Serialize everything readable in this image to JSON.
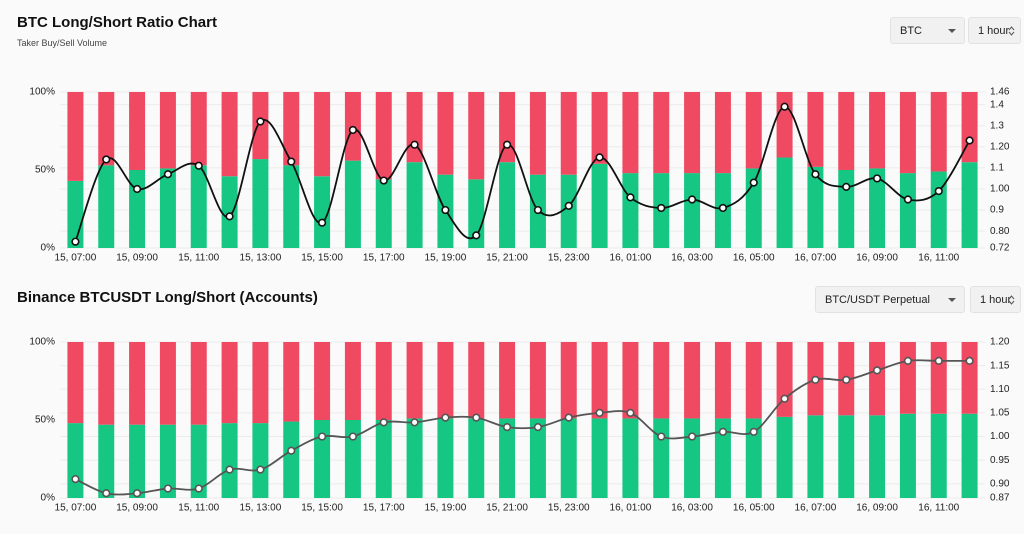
{
  "controls": [
    [
      "BTC",
      "1 hour"
    ],
    [
      "BTC/USDT Perpetual",
      "1 hour"
    ]
  ],
  "chart_data": [
    {
      "type": "stacked-bar-line",
      "title": "BTC Long/Short Ratio Chart",
      "subtitle": "Taker Buy/Sell Volume",
      "categories": [
        "15, 07:00",
        null,
        "15, 09:00",
        null,
        "15, 11:00",
        null,
        "15, 13:00",
        null,
        "15, 15:00",
        null,
        "15, 17:00",
        null,
        "15, 19:00",
        null,
        "15, 21:00",
        null,
        "15, 23:00",
        null,
        "16, 01:00",
        null,
        "16, 03:00",
        null,
        "16, 05:00",
        null,
        "16, 07:00",
        null,
        "16, 09:00",
        null,
        "16, 11:00",
        null
      ],
      "series": [
        {
          "color": "#16c784",
          "values": [
            43,
            53,
            50,
            51,
            53,
            46,
            57,
            53,
            46,
            56,
            44,
            55,
            47,
            44,
            55,
            47,
            47,
            54,
            48,
            48,
            48,
            48,
            51,
            58,
            52,
            50,
            51,
            48,
            49,
            55
          ]
        },
        {
          "color": "#f04a63",
          "values": [
            57,
            47,
            50,
            49,
            47,
            54,
            43,
            47,
            54,
            44,
            56,
            45,
            53,
            56,
            45,
            53,
            53,
            46,
            52,
            52,
            52,
            52,
            49,
            42,
            48,
            50,
            49,
            52,
            51,
            45
          ]
        },
        {
          "color": "#111111",
          "axis": "y2",
          "values": [
            0.75,
            1.14,
            1.0,
            1.07,
            1.11,
            0.87,
            1.32,
            1.13,
            0.84,
            1.28,
            1.04,
            1.21,
            0.9,
            0.78,
            1.21,
            0.9,
            0.92,
            1.15,
            0.96,
            0.91,
            0.95,
            0.91,
            1.03,
            1.39,
            1.07,
            1.01,
            1.05,
            0.95,
            0.99,
            1.23
          ]
        }
      ],
      "ylim": [
        0,
        100
      ],
      "yticks": [
        {
          "value": 0,
          "label": "0%"
        },
        {
          "value": 50,
          "label": "50%"
        },
        {
          "value": 100,
          "label": "100%"
        }
      ],
      "y2lim": [
        0.72,
        1.46
      ],
      "y2ticks": [
        0.72,
        {
          "value": 0.8,
          "label": "0.80"
        },
        0.9,
        {
          "value": 1,
          "label": "1.00"
        },
        1.1,
        {
          "value": 1.2,
          "label": "1.20"
        },
        1.3,
        1.4,
        1.46
      ],
      "grid": true
    },
    {
      "type": "stacked-bar-line",
      "title": "Binance BTCUSDT Long/Short (Accounts)",
      "categories": [
        "15, 07:00",
        null,
        "15, 09:00",
        null,
        "15, 11:00",
        null,
        "15, 13:00",
        null,
        "15, 15:00",
        null,
        "15, 17:00",
        null,
        "15, 19:00",
        null,
        "15, 21:00",
        null,
        "15, 23:00",
        null,
        "16, 01:00",
        null,
        "16, 03:00",
        null,
        "16, 05:00",
        null,
        "16, 07:00",
        null,
        "16, 09:00",
        null,
        "16, 11:00",
        null
      ],
      "series": [
        {
          "color": "#16c784",
          "values": [
            48,
            47,
            47,
            47,
            47,
            48,
            48,
            49,
            50,
            50,
            50,
            51,
            51,
            51,
            51,
            51,
            51,
            51,
            51,
            51,
            51,
            51,
            51,
            52,
            53,
            53,
            53,
            54,
            54,
            54
          ]
        },
        {
          "color": "#f04a63",
          "values": [
            52,
            53,
            53,
            53,
            53,
            52,
            52,
            51,
            50,
            50,
            50,
            49,
            49,
            49,
            49,
            49,
            49,
            49,
            49,
            49,
            49,
            49,
            49,
            48,
            47,
            47,
            47,
            46,
            46,
            46
          ]
        },
        {
          "color": "#555555",
          "axis": "y2",
          "values": [
            0.91,
            0.88,
            0.88,
            0.89,
            0.89,
            0.93,
            0.93,
            0.97,
            1.0,
            1.0,
            1.03,
            1.03,
            1.04,
            1.04,
            1.02,
            1.02,
            1.04,
            1.05,
            1.05,
            1.0,
            1.0,
            1.01,
            1.01,
            1.08,
            1.12,
            1.12,
            1.14,
            1.16,
            1.16,
            1.16
          ]
        }
      ],
      "ylim": [
        0,
        100
      ],
      "yticks": [
        {
          "value": 0,
          "label": "0%"
        },
        {
          "value": 50,
          "label": "50%"
        },
        {
          "value": 100,
          "label": "100%"
        }
      ],
      "y2lim": [
        0.87,
        1.2
      ],
      "y2ticks": [
        0.87,
        {
          "value": 0.9,
          "label": "0.90"
        },
        0.95,
        {
          "value": 1,
          "label": "1.00"
        },
        1.05,
        {
          "value": 1.1,
          "label": "1.10"
        },
        1.15,
        {
          "value": 1.2,
          "label": "1.20"
        }
      ],
      "grid": true
    }
  ]
}
